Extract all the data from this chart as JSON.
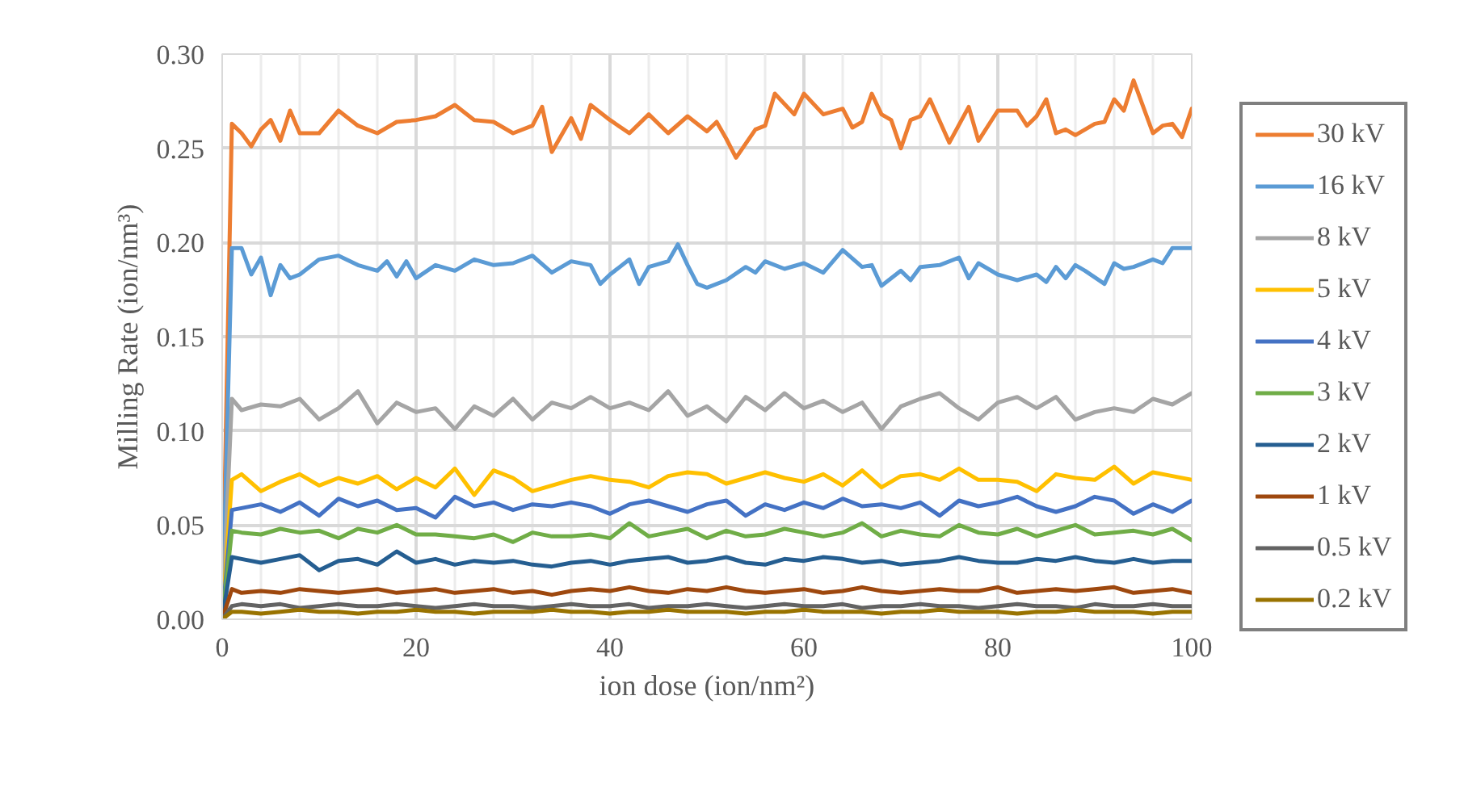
{
  "chart_data": {
    "type": "line",
    "xlabel": "ion dose (ion/nm²)",
    "ylabel": "Milling Rate (ion/nm³)",
    "xlim": [
      0,
      100
    ],
    "xticks": [
      0,
      20,
      40,
      60,
      80,
      100
    ],
    "ylim": [
      0,
      0.3
    ],
    "yticks": [
      {
        "value": 0,
        "label": "0.00"
      },
      {
        "value": 0.05,
        "label": "0.05"
      },
      {
        "value": 0.1,
        "label": "0.10"
      },
      {
        "value": 0.15,
        "label": "0.15"
      },
      {
        "value": 0.2,
        "label": "0.20"
      },
      {
        "value": 0.25,
        "label": "0.25"
      },
      {
        "value": 0.3,
        "label": "0.30"
      }
    ],
    "grid": true,
    "legend": "right",
    "marker": "none",
    "line_style": "solid",
    "x": [
      0,
      1,
      2,
      4,
      6,
      8,
      10,
      12,
      14,
      16,
      18,
      20,
      22,
      24,
      26,
      28,
      30,
      32,
      34,
      36,
      38,
      40,
      42,
      44,
      46,
      48,
      50,
      52,
      54,
      56,
      58,
      60,
      62,
      64,
      66,
      68,
      70,
      72,
      74,
      76,
      78,
      80,
      82,
      84,
      86,
      88,
      90,
      92,
      94,
      96,
      98,
      100
    ],
    "series": [
      {
        "name": "30 kV",
        "color": "#ed7d31",
        "x": [
          0,
          1,
          2,
          3,
          4,
          5,
          6,
          7,
          8,
          10,
          12,
          14,
          16,
          18,
          20,
          22,
          24,
          26,
          28,
          30,
          32,
          33,
          34,
          36,
          37,
          38,
          40,
          42,
          44,
          46,
          48,
          50,
          51,
          52,
          53,
          55,
          56,
          57,
          59,
          60,
          62,
          64,
          65,
          66,
          67,
          68,
          69,
          70,
          71,
          72,
          73,
          75,
          77,
          78,
          80,
          81,
          82,
          83,
          84,
          85,
          86,
          87,
          88,
          90,
          91,
          92,
          93,
          94,
          96,
          97,
          98,
          99,
          100
        ],
        "values": [
          0,
          0.263,
          0.258,
          0.251,
          0.26,
          0.265,
          0.254,
          0.27,
          0.258,
          0.258,
          0.27,
          0.262,
          0.258,
          0.264,
          0.265,
          0.267,
          0.273,
          0.265,
          0.264,
          0.258,
          0.262,
          0.272,
          0.248,
          0.266,
          0.255,
          0.273,
          0.265,
          0.258,
          0.268,
          0.258,
          0.267,
          0.259,
          0.264,
          0.255,
          0.245,
          0.26,
          0.262,
          0.279,
          0.268,
          0.279,
          0.268,
          0.271,
          0.261,
          0.264,
          0.279,
          0.268,
          0.265,
          0.25,
          0.265,
          0.267,
          0.276,
          0.253,
          0.272,
          0.254,
          0.27,
          0.27,
          0.27,
          0.262,
          0.267,
          0.276,
          0.258,
          0.26,
          0.257,
          0.263,
          0.264,
          0.276,
          0.27,
          0.286,
          0.258,
          0.262,
          0.263,
          0.256,
          0.271
        ]
      },
      {
        "name": "16 kV",
        "color": "#5b9bd5",
        "x": [
          0,
          1,
          2,
          3,
          4,
          5,
          6,
          7,
          8,
          10,
          12,
          14,
          16,
          17,
          18,
          19,
          20,
          22,
          24,
          26,
          28,
          30,
          32,
          34,
          36,
          38,
          39,
          40,
          42,
          43,
          44,
          46,
          47,
          48,
          49,
          50,
          52,
          54,
          55,
          56,
          58,
          60,
          62,
          64,
          66,
          67,
          68,
          70,
          71,
          72,
          74,
          76,
          77,
          78,
          80,
          82,
          84,
          85,
          86,
          87,
          88,
          89,
          91,
          92,
          93,
          94,
          96,
          97,
          98,
          100
        ],
        "values": [
          0,
          0.197,
          0.197,
          0.183,
          0.192,
          0.172,
          0.188,
          0.181,
          0.183,
          0.191,
          0.193,
          0.188,
          0.185,
          0.19,
          0.182,
          0.19,
          0.181,
          0.188,
          0.185,
          0.191,
          0.188,
          0.189,
          0.193,
          0.184,
          0.19,
          0.188,
          0.178,
          0.183,
          0.191,
          0.178,
          0.187,
          0.19,
          0.199,
          0.188,
          0.178,
          0.176,
          0.18,
          0.187,
          0.184,
          0.19,
          0.186,
          0.189,
          0.184,
          0.196,
          0.187,
          0.188,
          0.177,
          0.185,
          0.18,
          0.187,
          0.188,
          0.192,
          0.181,
          0.189,
          0.183,
          0.18,
          0.183,
          0.179,
          0.187,
          0.181,
          0.188,
          0.185,
          0.178,
          0.189,
          0.186,
          0.187,
          0.191,
          0.189,
          0.197,
          0.197
        ]
      },
      {
        "name": "8 kV",
        "color": "#a5a5a5",
        "values": [
          0,
          0.117,
          0.111,
          0.114,
          0.113,
          0.117,
          0.106,
          0.112,
          0.121,
          0.104,
          0.115,
          0.11,
          0.112,
          0.101,
          0.113,
          0.108,
          0.117,
          0.106,
          0.115,
          0.112,
          0.118,
          0.112,
          0.115,
          0.111,
          0.121,
          0.108,
          0.113,
          0.105,
          0.118,
          0.111,
          0.12,
          0.112,
          0.116,
          0.11,
          0.115,
          0.101,
          0.113,
          0.117,
          0.12,
          0.112,
          0.106,
          0.115,
          0.118,
          0.112,
          0.118,
          0.106,
          0.11,
          0.112,
          0.11,
          0.117,
          0.114,
          0.12
        ]
      },
      {
        "name": "5 kV",
        "color": "#ffc000",
        "values": [
          0,
          0.074,
          0.077,
          0.068,
          0.073,
          0.077,
          0.071,
          0.075,
          0.072,
          0.076,
          0.069,
          0.075,
          0.07,
          0.08,
          0.066,
          0.079,
          0.075,
          0.068,
          0.071,
          0.074,
          0.076,
          0.074,
          0.073,
          0.07,
          0.076,
          0.078,
          0.077,
          0.072,
          0.075,
          0.078,
          0.075,
          0.073,
          0.077,
          0.071,
          0.079,
          0.07,
          0.076,
          0.077,
          0.074,
          0.08,
          0.074,
          0.074,
          0.073,
          0.068,
          0.077,
          0.075,
          0.074,
          0.081,
          0.072,
          0.078,
          0.076,
          0.074
        ]
      },
      {
        "name": "4 kV",
        "color": "#4472c4",
        "values": [
          0,
          0.058,
          0.059,
          0.061,
          0.057,
          0.062,
          0.055,
          0.064,
          0.06,
          0.063,
          0.058,
          0.059,
          0.054,
          0.065,
          0.06,
          0.062,
          0.058,
          0.061,
          0.06,
          0.062,
          0.06,
          0.056,
          0.061,
          0.063,
          0.06,
          0.057,
          0.061,
          0.063,
          0.055,
          0.061,
          0.058,
          0.062,
          0.059,
          0.064,
          0.06,
          0.061,
          0.059,
          0.062,
          0.055,
          0.063,
          0.06,
          0.062,
          0.065,
          0.06,
          0.057,
          0.06,
          0.065,
          0.063,
          0.056,
          0.061,
          0.057,
          0.063
        ]
      },
      {
        "name": "3 kV",
        "color": "#70ad47",
        "values": [
          0,
          0.047,
          0.046,
          0.045,
          0.048,
          0.046,
          0.047,
          0.043,
          0.048,
          0.046,
          0.05,
          0.045,
          0.045,
          0.044,
          0.043,
          0.045,
          0.041,
          0.046,
          0.044,
          0.044,
          0.045,
          0.043,
          0.051,
          0.044,
          0.046,
          0.048,
          0.043,
          0.047,
          0.044,
          0.045,
          0.048,
          0.046,
          0.044,
          0.046,
          0.051,
          0.044,
          0.047,
          0.045,
          0.044,
          0.05,
          0.046,
          0.045,
          0.048,
          0.044,
          0.047,
          0.05,
          0.045,
          0.046,
          0.047,
          0.045,
          0.048,
          0.042
        ]
      },
      {
        "name": "2 kV",
        "color": "#255e91",
        "values": [
          0,
          0.033,
          0.032,
          0.03,
          0.032,
          0.034,
          0.026,
          0.031,
          0.032,
          0.029,
          0.036,
          0.03,
          0.032,
          0.029,
          0.031,
          0.03,
          0.031,
          0.029,
          0.028,
          0.03,
          0.031,
          0.029,
          0.031,
          0.032,
          0.033,
          0.03,
          0.031,
          0.033,
          0.03,
          0.029,
          0.032,
          0.031,
          0.033,
          0.032,
          0.03,
          0.031,
          0.029,
          0.03,
          0.031,
          0.033,
          0.031,
          0.03,
          0.03,
          0.032,
          0.031,
          0.033,
          0.031,
          0.03,
          0.032,
          0.03,
          0.031,
          0.031
        ]
      },
      {
        "name": "1 kV",
        "color": "#9e480e",
        "values": [
          0,
          0.016,
          0.014,
          0.015,
          0.014,
          0.016,
          0.015,
          0.014,
          0.015,
          0.016,
          0.014,
          0.015,
          0.016,
          0.014,
          0.015,
          0.016,
          0.014,
          0.015,
          0.013,
          0.015,
          0.016,
          0.015,
          0.017,
          0.015,
          0.014,
          0.016,
          0.015,
          0.017,
          0.015,
          0.014,
          0.015,
          0.016,
          0.014,
          0.015,
          0.017,
          0.015,
          0.014,
          0.015,
          0.016,
          0.015,
          0.015,
          0.017,
          0.014,
          0.015,
          0.016,
          0.015,
          0.016,
          0.017,
          0.014,
          0.015,
          0.016,
          0.014
        ]
      },
      {
        "name": "0.5 kV",
        "color": "#636363",
        "values": [
          0,
          0.007,
          0.008,
          0.007,
          0.008,
          0.006,
          0.007,
          0.008,
          0.007,
          0.007,
          0.008,
          0.007,
          0.006,
          0.007,
          0.008,
          0.007,
          0.007,
          0.006,
          0.007,
          0.008,
          0.007,
          0.007,
          0.008,
          0.006,
          0.007,
          0.007,
          0.008,
          0.007,
          0.006,
          0.007,
          0.008,
          0.007,
          0.007,
          0.008,
          0.006,
          0.007,
          0.007,
          0.008,
          0.007,
          0.007,
          0.006,
          0.007,
          0.008,
          0.007,
          0.007,
          0.006,
          0.008,
          0.007,
          0.007,
          0.008,
          0.007,
          0.007
        ]
      },
      {
        "name": "0.2 kV",
        "color": "#997300",
        "values": [
          0,
          0.004,
          0.004,
          0.003,
          0.004,
          0.005,
          0.004,
          0.004,
          0.003,
          0.004,
          0.004,
          0.005,
          0.004,
          0.004,
          0.003,
          0.004,
          0.004,
          0.004,
          0.005,
          0.004,
          0.004,
          0.003,
          0.004,
          0.004,
          0.005,
          0.004,
          0.004,
          0.004,
          0.003,
          0.004,
          0.004,
          0.005,
          0.004,
          0.004,
          0.004,
          0.003,
          0.004,
          0.004,
          0.005,
          0.004,
          0.004,
          0.004,
          0.003,
          0.004,
          0.004,
          0.005,
          0.004,
          0.004,
          0.004,
          0.003,
          0.004,
          0.004
        ]
      }
    ]
  }
}
